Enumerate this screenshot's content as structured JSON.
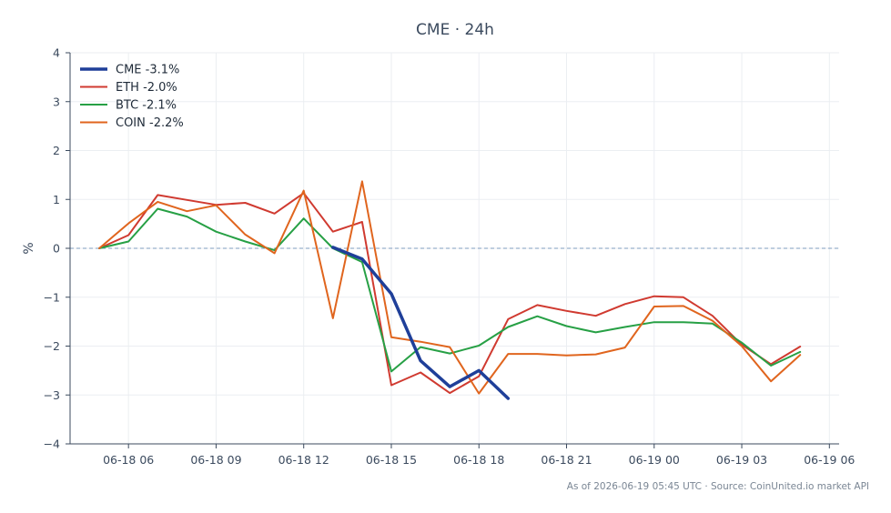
{
  "chart_data": {
    "type": "line",
    "title": "CME · 24h",
    "xlabel": "",
    "ylabel": "%",
    "ylim": [
      -4,
      4
    ],
    "yticks": [
      -4,
      -3,
      -2,
      -1,
      0,
      1,
      2,
      3,
      4
    ],
    "ytick_labels": [
      "−4",
      "−3",
      "−2",
      "−1",
      "0",
      "1",
      "2",
      "3",
      "4"
    ],
    "xlim": [
      "2026-06-18 04:00",
      "2026-06-19 06:20"
    ],
    "xticks": [
      "2026-06-18 06:00",
      "2026-06-18 09:00",
      "2026-06-18 12:00",
      "2026-06-18 15:00",
      "2026-06-18 18:00",
      "2026-06-18 21:00",
      "2026-06-19 00:00",
      "2026-06-19 03:00",
      "2026-06-19 06:00"
    ],
    "xtick_labels": [
      "06-18 06",
      "06-18 09",
      "06-18 12",
      "06-18 15",
      "06-18 18",
      "06-18 21",
      "06-19 00",
      "06-19 03",
      "06-19 06"
    ],
    "grid": true,
    "legend": "top-left",
    "zero_line": true,
    "series": [
      {
        "name": "CME -3.1%",
        "color": "#1f3f99",
        "bold": true,
        "x": [
          "2026-06-18 13:00",
          "2026-06-18 14:00",
          "2026-06-18 15:00",
          "2026-06-18 16:00",
          "2026-06-18 17:00",
          "2026-06-18 18:00",
          "2026-06-18 19:00"
        ],
        "y": [
          0.02,
          -0.22,
          -0.93,
          -2.3,
          -2.83,
          -2.5,
          -3.07
        ]
      },
      {
        "name": "ETH -2.0%",
        "color": "#d03a30",
        "x": [
          "2026-06-18 05:00",
          "2026-06-18 06:00",
          "2026-06-18 07:00",
          "2026-06-18 08:00",
          "2026-06-18 09:00",
          "2026-06-18 10:00",
          "2026-06-18 11:00",
          "2026-06-18 12:00",
          "2026-06-18 13:00",
          "2026-06-18 14:00",
          "2026-06-18 15:00",
          "2026-06-18 16:00",
          "2026-06-18 17:00",
          "2026-06-18 18:00",
          "2026-06-18 19:00",
          "2026-06-18 20:00",
          "2026-06-18 21:00",
          "2026-06-18 22:00",
          "2026-06-18 23:00",
          "2026-06-19 00:00",
          "2026-06-19 01:00",
          "2026-06-19 02:00",
          "2026-06-19 03:00",
          "2026-06-19 04:00",
          "2026-06-19 05:00"
        ],
        "y": [
          0.0,
          0.27,
          1.09,
          0.99,
          0.89,
          0.93,
          0.71,
          1.13,
          0.34,
          0.54,
          -2.8,
          -2.54,
          -2.96,
          -2.62,
          -1.45,
          -1.16,
          -1.28,
          -1.38,
          -1.14,
          -0.98,
          -1.0,
          -1.38,
          -1.97,
          -2.37,
          -2.01
        ]
      },
      {
        "name": "BTC -2.1%",
        "color": "#27a045",
        "x": [
          "2026-06-18 05:00",
          "2026-06-18 06:00",
          "2026-06-18 07:00",
          "2026-06-18 08:00",
          "2026-06-18 09:00",
          "2026-06-18 10:00",
          "2026-06-18 11:00",
          "2026-06-18 12:00",
          "2026-06-18 13:00",
          "2026-06-18 14:00",
          "2026-06-18 15:00",
          "2026-06-18 16:00",
          "2026-06-18 17:00",
          "2026-06-18 18:00",
          "2026-06-18 19:00",
          "2026-06-18 20:00",
          "2026-06-18 21:00",
          "2026-06-18 22:00",
          "2026-06-18 23:00",
          "2026-06-19 00:00",
          "2026-06-19 01:00",
          "2026-06-19 02:00",
          "2026-06-19 03:00",
          "2026-06-19 04:00",
          "2026-06-19 05:00"
        ],
        "y": [
          0.0,
          0.14,
          0.81,
          0.65,
          0.34,
          0.14,
          -0.04,
          0.61,
          0.0,
          -0.28,
          -2.52,
          -2.02,
          -2.15,
          -1.99,
          -1.61,
          -1.39,
          -1.59,
          -1.72,
          -1.61,
          -1.51,
          -1.51,
          -1.54,
          -1.93,
          -2.4,
          -2.12
        ]
      },
      {
        "name": "COIN -2.2%",
        "color": "#e0651e",
        "x": [
          "2026-06-18 05:00",
          "2026-06-18 06:00",
          "2026-06-18 07:00",
          "2026-06-18 08:00",
          "2026-06-18 09:00",
          "2026-06-18 10:00",
          "2026-06-18 11:00",
          "2026-06-18 12:00",
          "2026-06-18 13:00",
          "2026-06-18 14:00",
          "2026-06-18 15:00",
          "2026-06-18 16:00",
          "2026-06-18 17:00",
          "2026-06-18 18:00",
          "2026-06-18 19:00",
          "2026-06-18 20:00",
          "2026-06-18 21:00",
          "2026-06-18 22:00",
          "2026-06-18 23:00",
          "2026-06-19 00:00",
          "2026-06-19 01:00",
          "2026-06-19 02:00",
          "2026-06-19 03:00",
          "2026-06-19 04:00",
          "2026-06-19 05:00"
        ],
        "y": [
          0.0,
          0.51,
          0.95,
          0.76,
          0.88,
          0.28,
          -0.1,
          1.18,
          -1.43,
          1.37,
          -1.82,
          -1.91,
          -2.02,
          -2.97,
          -2.16,
          -2.16,
          -2.19,
          -2.17,
          -2.03,
          -1.19,
          -1.18,
          -1.48,
          -2.0,
          -2.72,
          -2.18
        ]
      }
    ]
  },
  "footer": "As of 2026-06-19 05:45 UTC · Source: CoinUnited.io market API",
  "colors": {
    "axis": "#3b4a5e",
    "grid": "#ebeef2",
    "zero_line": "#7f9cbf"
  }
}
